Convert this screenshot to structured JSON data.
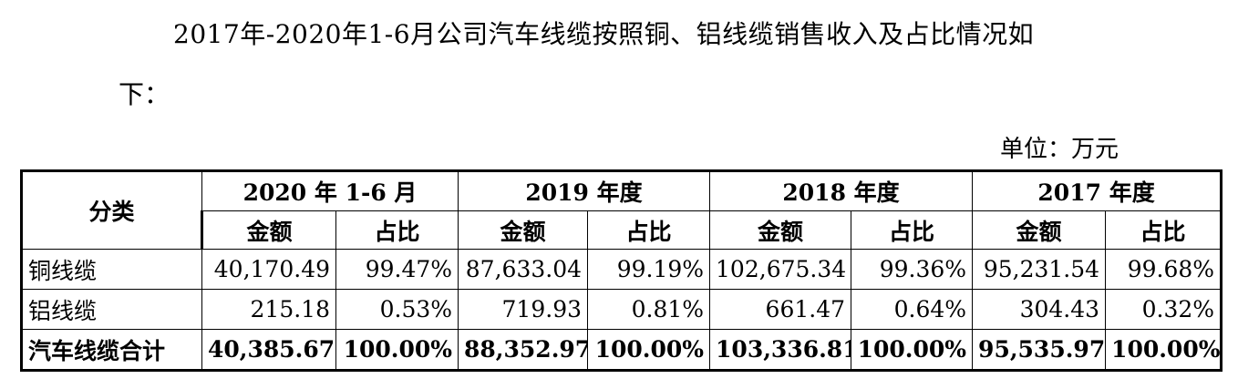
{
  "paragraph": {
    "line1": "2017年-2020年1-6月公司汽车线缆按照铜、铝线缆销售收入及占比情况如",
    "line2": "下："
  },
  "unit_label": "单位：万元",
  "table": {
    "category_header": "分类",
    "periods": [
      "2020 年 1-6 月",
      "2019 年度",
      "2018 年度",
      "2017 年度"
    ],
    "sub_headers": {
      "amount": "金额",
      "ratio": "占比"
    },
    "rows": [
      {
        "label": "铜线缆",
        "cells": [
          "40,170.49",
          "99.47%",
          "87,633.04",
          "99.19%",
          "102,675.34",
          "99.36%",
          "95,231.54",
          "99.68%"
        ]
      },
      {
        "label": "铝线缆",
        "cells": [
          "215.18",
          "0.53%",
          "719.93",
          "0.81%",
          "661.47",
          "0.64%",
          "304.43",
          "0.32%"
        ]
      },
      {
        "label": "汽车线缆合计",
        "cells": [
          "40,385.67",
          "100.00%",
          "88,352.97",
          "100.00%",
          "103,336.81",
          "100.00%",
          "95,535.97",
          "100.00%"
        ]
      }
    ]
  }
}
